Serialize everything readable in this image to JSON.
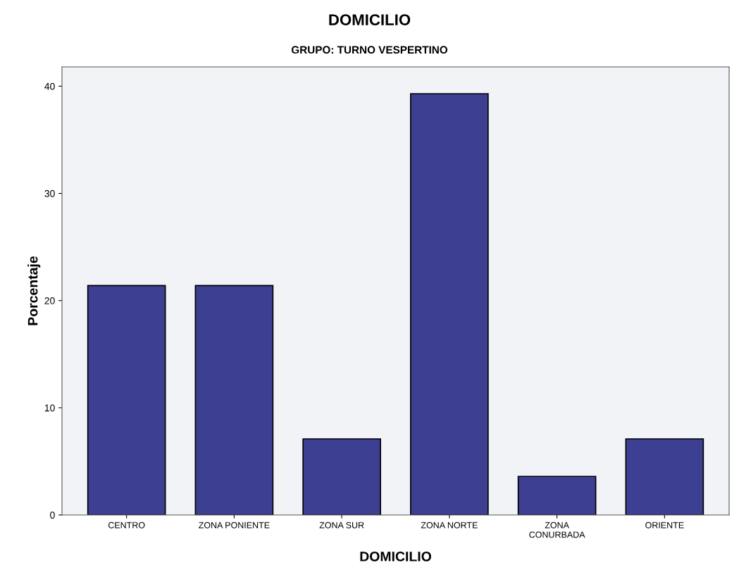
{
  "chart_data": {
    "type": "bar",
    "title": "DOMICILIO",
    "subtitle": "GRUPO: TURNO VESPERTINO",
    "xlabel": "DOMICILIO",
    "ylabel": "Porcentaje",
    "categories": [
      "CENTRO",
      "ZONA PONIENTE",
      "ZONA SUR",
      "ZONA NORTE",
      "ZONA\nCONURBADA",
      "ORIENTE"
    ],
    "values": [
      21.4,
      21.4,
      7.1,
      39.3,
      3.6,
      7.1
    ],
    "color": "#3c3f92",
    "ylim": [
      0,
      41.8
    ],
    "yticks": [
      0,
      10,
      20,
      30,
      40
    ],
    "grid": false,
    "legend": false
  }
}
